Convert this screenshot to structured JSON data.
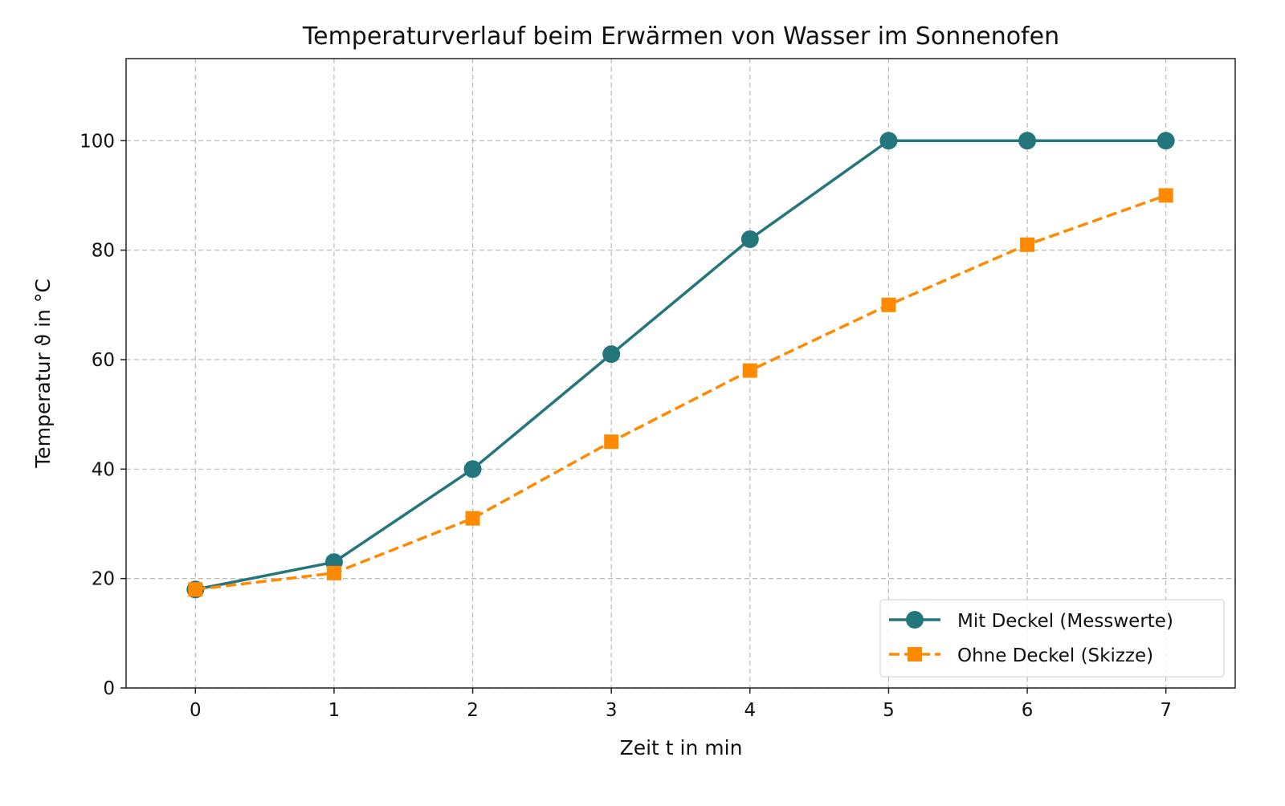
{
  "chart_data": {
    "type": "line",
    "title": "Temperaturverlauf beim Erwärmen von Wasser im Sonnenofen",
    "xlabel": "Zeit t in min",
    "ylabel": "Temperatur ϑ in °C",
    "xlim": [
      -0.5,
      7.5
    ],
    "ylim": [
      0,
      115
    ],
    "xticks": [
      0,
      1,
      2,
      3,
      4,
      5,
      6,
      7
    ],
    "yticks": [
      0,
      20,
      40,
      60,
      80,
      100
    ],
    "grid": true,
    "legend_position": "bottom-right",
    "x": [
      0,
      1,
      2,
      3,
      4,
      5,
      6,
      7
    ],
    "series": [
      {
        "name": "Mit Deckel (Messwerte)",
        "values": [
          18,
          23,
          40,
          61,
          82,
          100,
          100,
          100
        ],
        "color": "#23767c",
        "marker": "circle",
        "linestyle": "solid"
      },
      {
        "name": "Ohne Deckel (Skizze)",
        "values": [
          18,
          21,
          31,
          45,
          58,
          70,
          81,
          90
        ],
        "color": "#ff8a00",
        "marker": "square",
        "linestyle": "dashed"
      }
    ]
  }
}
